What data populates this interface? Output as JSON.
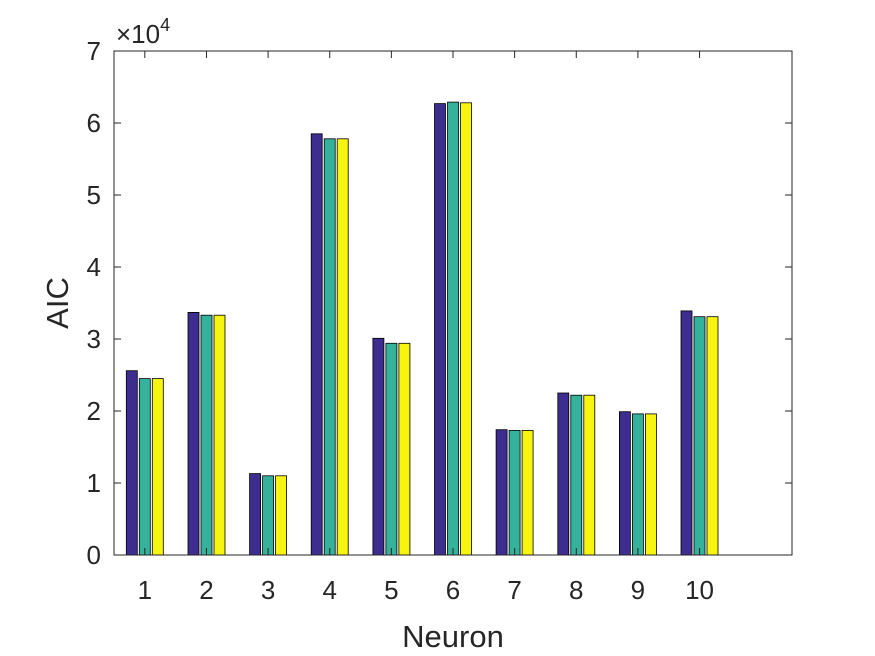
{
  "chart_data": {
    "type": "bar",
    "xlabel": "Neuron",
    "ylabel": "AIC",
    "categories": [
      "1",
      "2",
      "3",
      "4",
      "5",
      "6",
      "7",
      "8",
      "9",
      "10"
    ],
    "series": [
      {
        "values": [
          25600,
          33700,
          11300,
          58500,
          30100,
          62700,
          17400,
          22500,
          19900,
          33900
        ]
      },
      {
        "values": [
          24500,
          33300,
          11000,
          57800,
          29400,
          62900,
          17300,
          22200,
          19600,
          33100
        ]
      },
      {
        "values": [
          24500,
          33300,
          11000,
          57800,
          29400,
          62800,
          17300,
          22200,
          19600,
          33100
        ]
      }
    ],
    "colors": [
      "#3d2d8f",
      "#35b29c",
      "#f7f50f"
    ],
    "ylim": [
      0,
      70000
    ],
    "yticks": [
      0,
      1,
      2,
      3,
      4,
      5,
      6,
      7
    ],
    "y_exponent": {
      "prefix": "×10",
      "power": "4"
    },
    "grid": false,
    "legend": "none"
  }
}
